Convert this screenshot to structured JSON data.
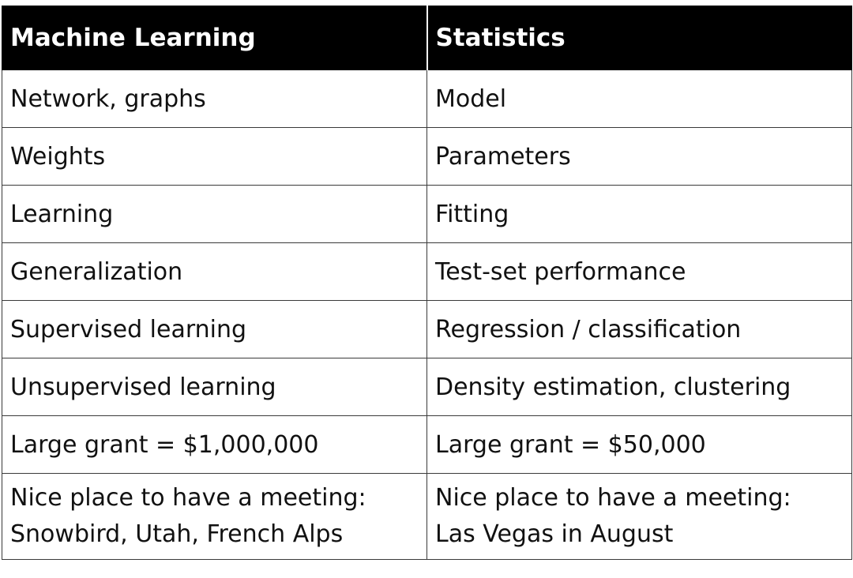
{
  "table": {
    "headers": [
      "Machine Learning",
      "Statistics"
    ],
    "rows": [
      [
        "Network, graphs",
        "Model"
      ],
      [
        "Weights",
        "Parameters"
      ],
      [
        "Learning",
        "Fitting"
      ],
      [
        "Generalization",
        "Test-set performance"
      ],
      [
        "Supervised learning",
        "Regression / classification"
      ],
      [
        "Unsupervised learning",
        "Density estimation, clustering"
      ],
      [
        "Large grant = $1,000,000",
        "Large grant = $50,000"
      ],
      [
        "Nice place to have a meeting:\nSnowbird, Utah, French Alps",
        "Nice place to have a meeting:\nLas Vegas in August"
      ]
    ]
  },
  "colors": {
    "header_bg": "#000000",
    "header_text": "#ffffff",
    "border": "#3a3a3a",
    "body_text": "#111111"
  }
}
